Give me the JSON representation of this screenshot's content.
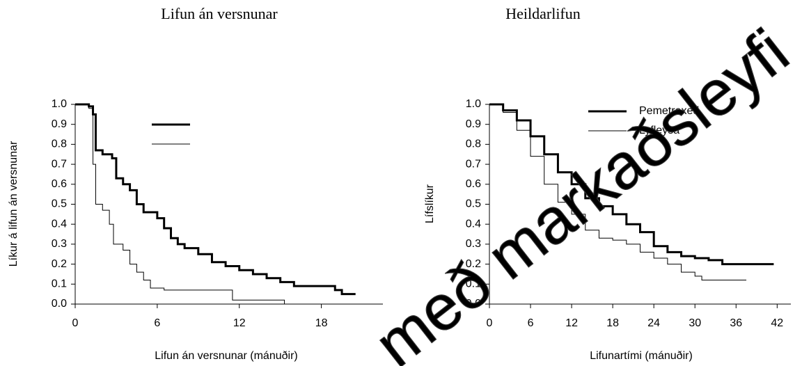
{
  "chart_data": [
    {
      "type": "line",
      "line_shape": "step",
      "title": "Lifun án versnunar",
      "ylabel": "Líkur á lifun án versnunar",
      "xlabel": "Lifun án versnunar (mánuðir)",
      "xlim": [
        0,
        22.5
      ],
      "xticks": [
        0,
        6,
        12,
        18
      ],
      "ylim": [
        0,
        1
      ],
      "yticks": [
        {
          "value": 0,
          "label": "0.0"
        },
        {
          "value": 0.1,
          "label": "0.1"
        },
        {
          "value": 0.2,
          "label": "0.2"
        },
        {
          "value": 0.3,
          "label": "0.3"
        },
        {
          "value": 0.4,
          "label": "0.4"
        },
        {
          "value": 0.5,
          "label": "0.5"
        },
        {
          "value": 0.6,
          "label": "0.6"
        },
        {
          "value": 0.7,
          "label": "0.7"
        },
        {
          "value": 0.8,
          "label": "0.8"
        },
        {
          "value": 0.9,
          "label": "0.9"
        },
        {
          "value": 1,
          "label": "1.0"
        }
      ],
      "series": [
        {
          "color": "#000000",
          "width": 3,
          "x": [
            0,
            1,
            1.3,
            1.5,
            2,
            2.7,
            3,
            3.5,
            4,
            4.5,
            5,
            6,
            6.5,
            7,
            7.5,
            8,
            9,
            10,
            11,
            12,
            13,
            14,
            15,
            16,
            19,
            19.5,
            20.5
          ],
          "values": [
            1.0,
            0.99,
            0.95,
            0.77,
            0.75,
            0.73,
            0.63,
            0.6,
            0.57,
            0.5,
            0.46,
            0.43,
            0.38,
            0.33,
            0.3,
            0.28,
            0.25,
            0.21,
            0.19,
            0.17,
            0.15,
            0.13,
            0.11,
            0.09,
            0.07,
            0.05,
            0.05
          ]
        },
        {
          "color": "#000000",
          "width": 1,
          "x": [
            0,
            1,
            1.3,
            1.5,
            2,
            2.5,
            2.8,
            3.5,
            4,
            4.5,
            5,
            5.5,
            6.5,
            11,
            11.5,
            15.3
          ],
          "values": [
            1.0,
            0.98,
            0.7,
            0.5,
            0.47,
            0.4,
            0.3,
            0.27,
            0.2,
            0.16,
            0.12,
            0.08,
            0.07,
            0.07,
            0.02,
            0.0
          ]
        }
      ]
    },
    {
      "type": "line",
      "line_shape": "step",
      "title": "Heildarlifun",
      "ylabel": "Lífslíkur",
      "xlabel": "Lifunartími (mánuðir)",
      "xlim": [
        0,
        44
      ],
      "xticks": [
        0,
        6,
        12,
        18,
        24,
        30,
        36,
        42
      ],
      "ylim": [
        0,
        1
      ],
      "yticks": [
        {
          "value": 0,
          "label": "0.0"
        },
        {
          "value": 0.1,
          "label": "0.1"
        },
        {
          "value": 0.2,
          "label": "0.2"
        },
        {
          "value": 0.3,
          "label": "0.3"
        },
        {
          "value": 0.4,
          "label": "0.4"
        },
        {
          "value": 0.5,
          "label": "0.5"
        },
        {
          "value": 0.6,
          "label": "0.6"
        },
        {
          "value": 0.7,
          "label": "0.7"
        },
        {
          "value": 0.8,
          "label": "0.8"
        },
        {
          "value": 0.9,
          "label": "0.9"
        },
        {
          "value": 1,
          "label": "1.0"
        }
      ],
      "series": [
        {
          "name": "Pemetrexed",
          "color": "#000000",
          "width": 3,
          "x": [
            0,
            2,
            4,
            6,
            8,
            10,
            12,
            14,
            16,
            18,
            20,
            22,
            24,
            26,
            28,
            30,
            32,
            34,
            41.5
          ],
          "values": [
            1.0,
            0.97,
            0.92,
            0.84,
            0.75,
            0.66,
            0.6,
            0.53,
            0.49,
            0.45,
            0.4,
            0.36,
            0.29,
            0.26,
            0.24,
            0.23,
            0.22,
            0.2,
            0.2
          ]
        },
        {
          "name": "Lyfleysa",
          "color": "#000000",
          "width": 1,
          "x": [
            0,
            2,
            4,
            6,
            8,
            10,
            12,
            14,
            16,
            18,
            20,
            22,
            24,
            26,
            28,
            30,
            31,
            37.5
          ],
          "values": [
            1.0,
            0.96,
            0.87,
            0.74,
            0.6,
            0.51,
            0.45,
            0.37,
            0.33,
            0.32,
            0.3,
            0.26,
            0.23,
            0.2,
            0.16,
            0.14,
            0.12,
            0.12
          ]
        }
      ]
    }
  ],
  "watermark": "með markaðsleyfi"
}
